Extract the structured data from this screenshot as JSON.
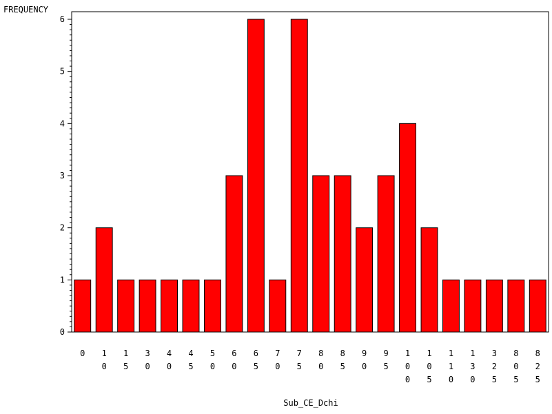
{
  "chart_data": {
    "type": "bar",
    "ylabel": "FREQUENCY",
    "xlabel": "Sub_CE_Dchi",
    "ylim": [
      0,
      6
    ],
    "yticks": [
      "0",
      "1",
      "2",
      "3",
      "4",
      "5",
      "6"
    ],
    "categories": [
      "0",
      "10",
      "15",
      "30",
      "40",
      "45",
      "50",
      "60",
      "65",
      "70",
      "75",
      "80",
      "85",
      "90",
      "95",
      "100",
      "105",
      "110",
      "130",
      "325",
      "805",
      "825"
    ],
    "values": [
      1,
      2,
      1,
      1,
      1,
      1,
      1,
      3,
      6,
      1,
      6,
      3,
      3,
      2,
      3,
      4,
      2,
      1,
      1,
      1,
      1,
      1
    ],
    "bar_color": "#ff0000",
    "grid": false
  }
}
